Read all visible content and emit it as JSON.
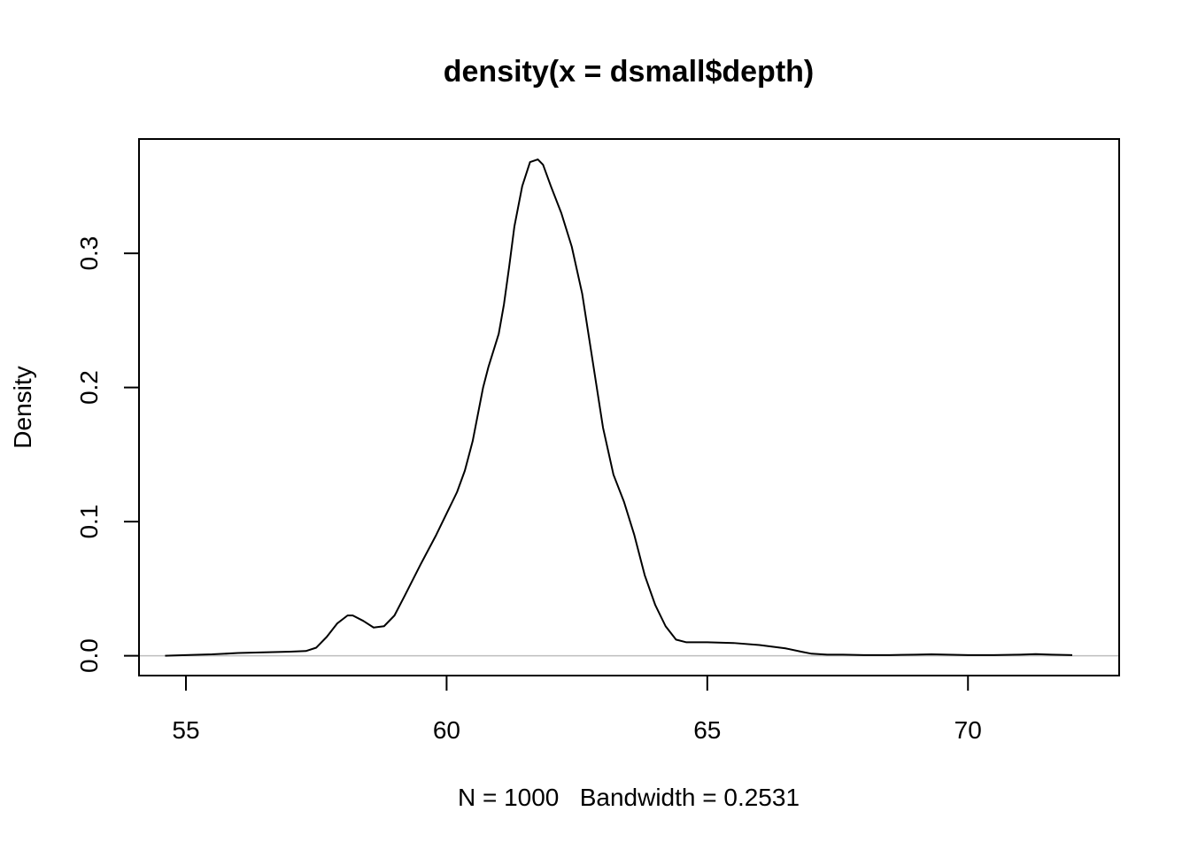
{
  "chart_data": {
    "type": "line",
    "title": "density(x = dsmall$depth)",
    "xlabel": "N = 1000   Bandwidth = 0.2531",
    "ylabel": "Density",
    "xlim": [
      54.1,
      72.9
    ],
    "ylim": [
      -0.0148,
      0.3852
    ],
    "x_ticks": [
      55,
      60,
      65,
      70
    ],
    "x_tick_labels": [
      "55",
      "60",
      "65",
      "70"
    ],
    "y_ticks": [
      0.0,
      0.1,
      0.2,
      0.3
    ],
    "y_tick_labels": [
      "0.0",
      "0.1",
      "0.2",
      "0.3"
    ],
    "baseline": 0,
    "grid": false,
    "line_color": "#000000",
    "baseline_color": "#bebebe",
    "series": [
      {
        "x": [
          54.6,
          55.0,
          55.5,
          56.0,
          56.5,
          57.0,
          57.3,
          57.5,
          57.7,
          57.9,
          58.1,
          58.2,
          58.4,
          58.6,
          58.8,
          59.0,
          59.2,
          59.5,
          59.8,
          60.0,
          60.2,
          60.35,
          60.5,
          60.7,
          60.8,
          61.0,
          61.1,
          61.2,
          61.3,
          61.45,
          61.6,
          61.75,
          61.85,
          62.0,
          62.2,
          62.4,
          62.6,
          62.8,
          63.0,
          63.2,
          63.4,
          63.6,
          63.8,
          64.0,
          64.2,
          64.4,
          64.6,
          64.8,
          65.0,
          65.5,
          66.0,
          66.5,
          66.8,
          67.0,
          67.3,
          67.6,
          68.0,
          68.5,
          69.0,
          69.3,
          69.6,
          70.0,
          70.5,
          71.0,
          71.3,
          71.6,
          72.0
        ],
        "y": [
          0.0,
          0.0005,
          0.001,
          0.002,
          0.0025,
          0.003,
          0.0035,
          0.006,
          0.014,
          0.024,
          0.03,
          0.03,
          0.026,
          0.021,
          0.022,
          0.03,
          0.045,
          0.068,
          0.09,
          0.106,
          0.122,
          0.138,
          0.16,
          0.2,
          0.215,
          0.24,
          0.262,
          0.29,
          0.32,
          0.35,
          0.368,
          0.37,
          0.366,
          0.35,
          0.33,
          0.305,
          0.27,
          0.22,
          0.17,
          0.135,
          0.115,
          0.09,
          0.06,
          0.038,
          0.022,
          0.012,
          0.01,
          0.01,
          0.01,
          0.0095,
          0.008,
          0.0055,
          0.003,
          0.0015,
          0.0008,
          0.0008,
          0.0005,
          0.0005,
          0.0008,
          0.001,
          0.0008,
          0.0005,
          0.0005,
          0.0008,
          0.0012,
          0.0008,
          0.0005
        ]
      }
    ]
  }
}
